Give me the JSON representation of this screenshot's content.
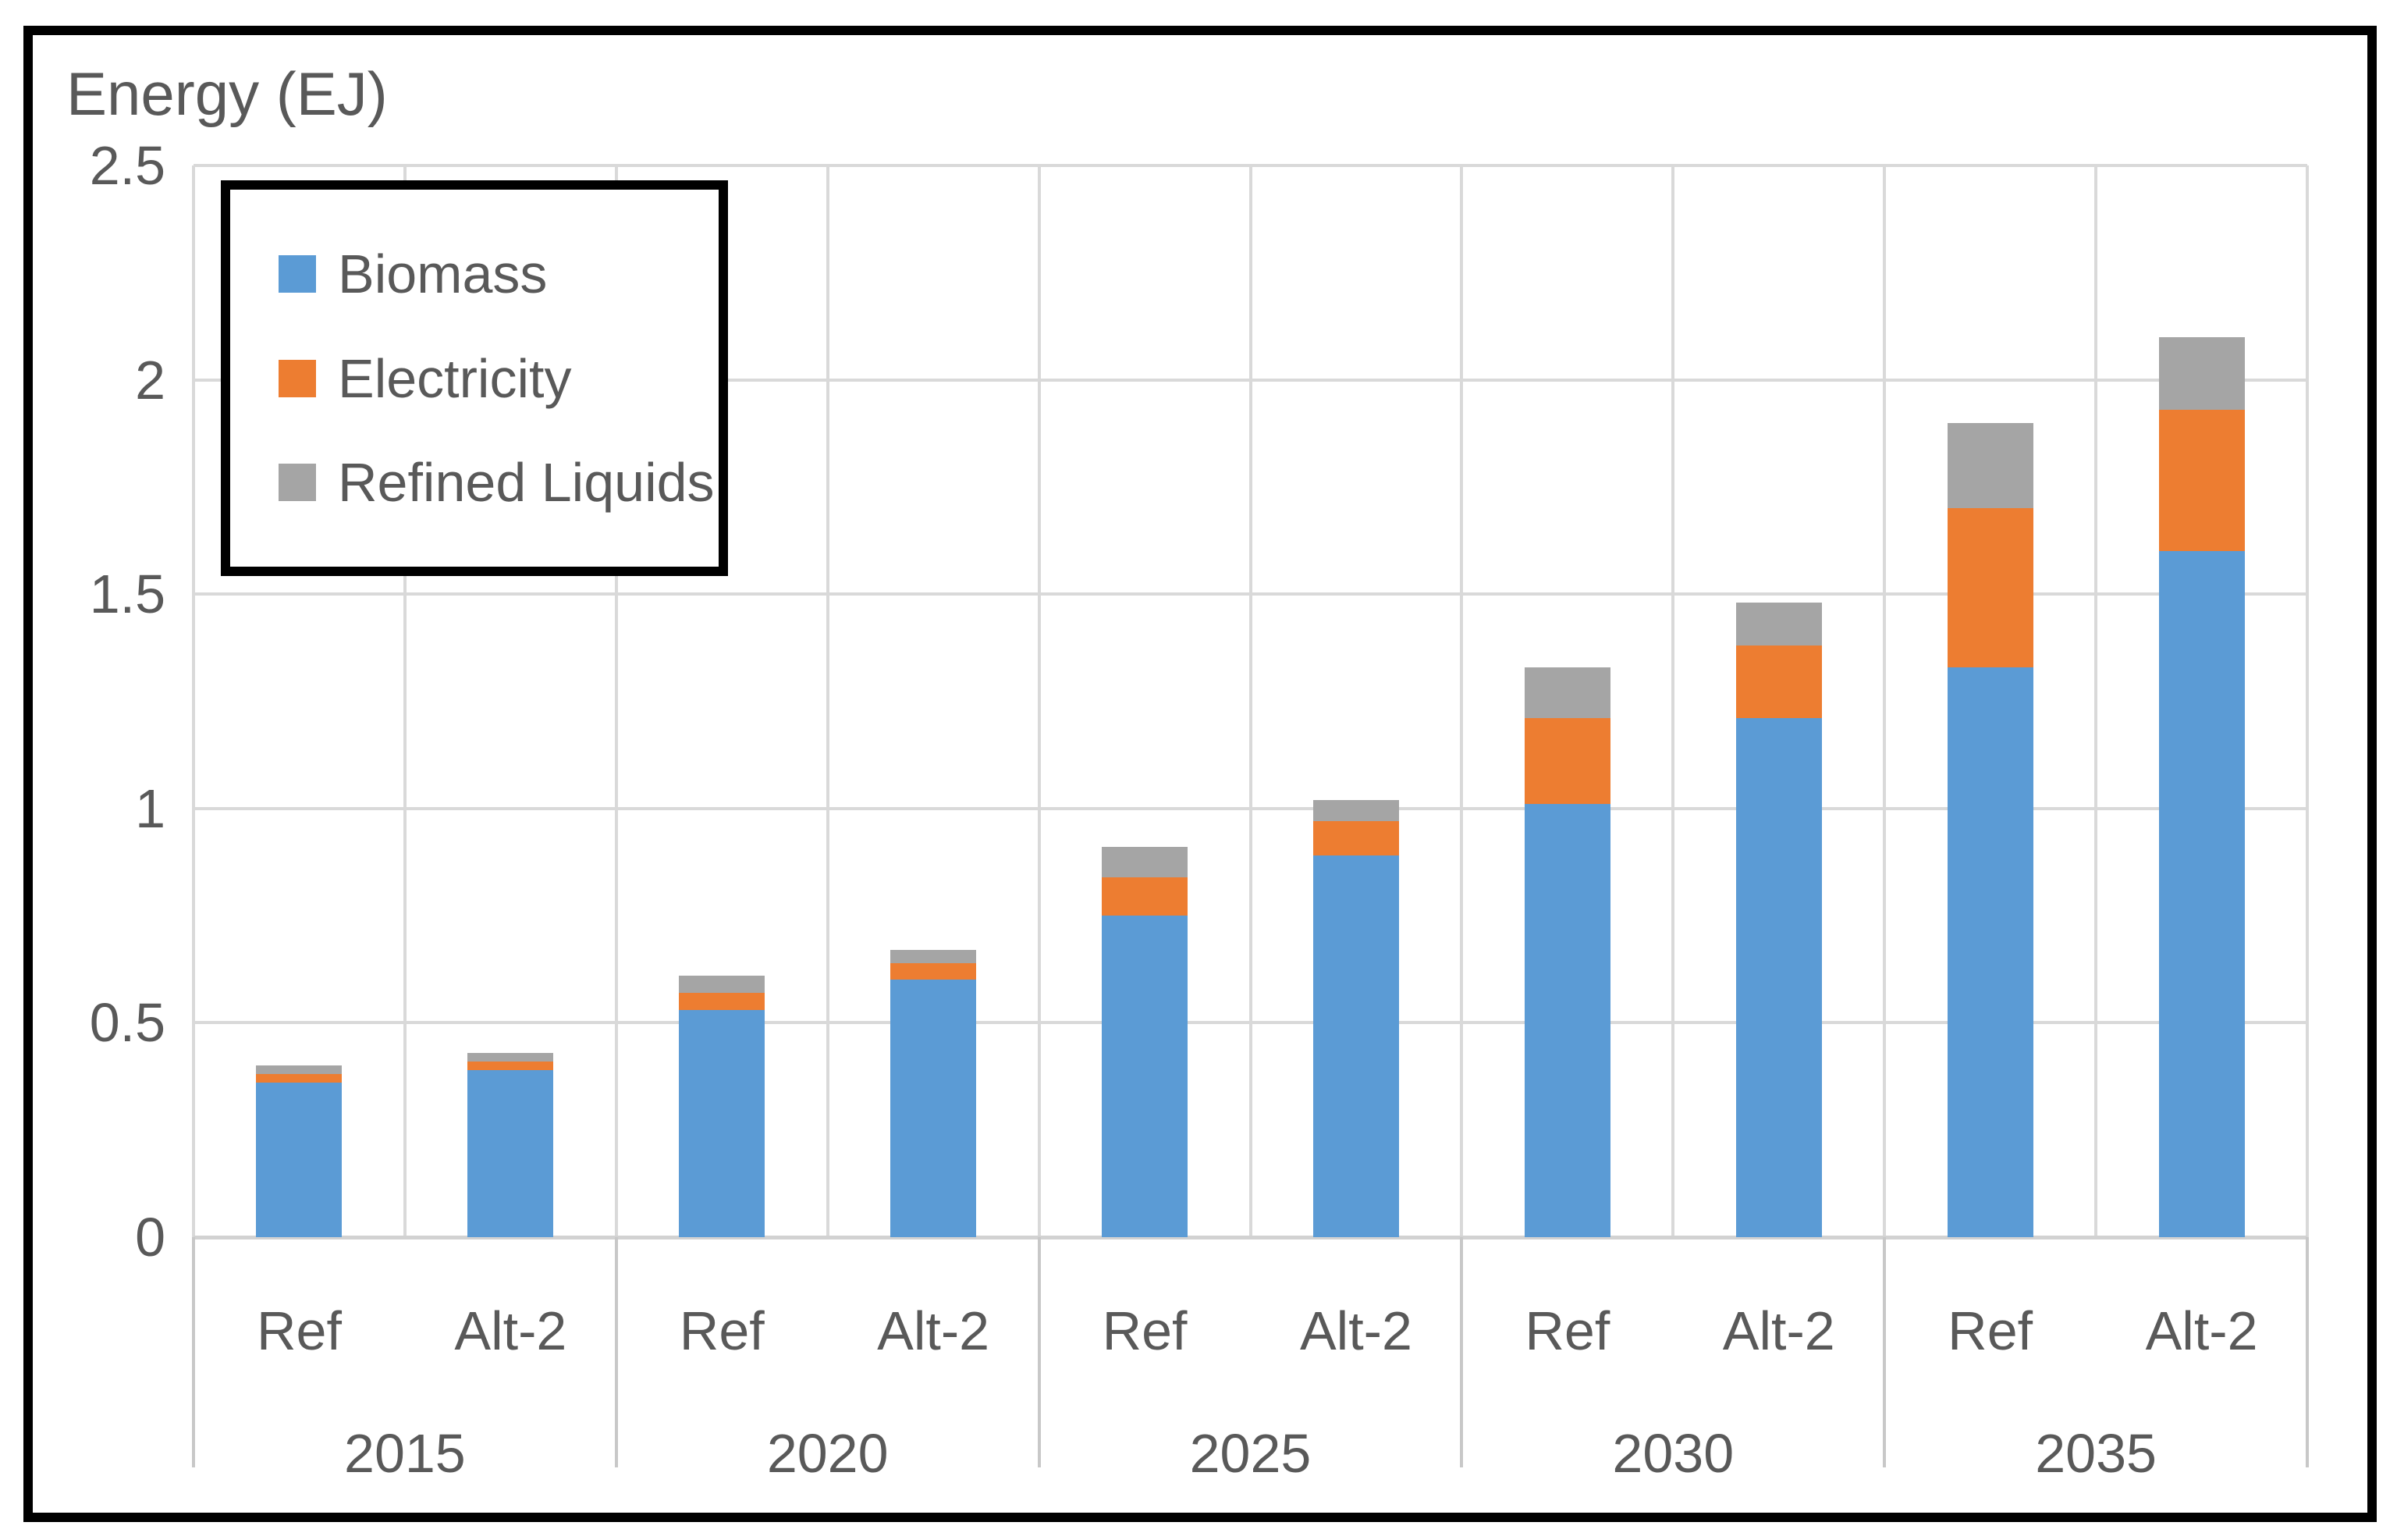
{
  "chart_data": {
    "type": "bar",
    "stacked": true,
    "title": "Energy (EJ)",
    "ylabel": "Energy (EJ)",
    "ylim": [
      0,
      2.5
    ],
    "yticks": [
      0,
      0.5,
      1,
      1.5,
      2,
      2.5
    ],
    "ytick_labels": [
      "0",
      "0.5",
      "1",
      "1.5",
      "2",
      "2.5"
    ],
    "groups": [
      "2015",
      "2020",
      "2025",
      "2030",
      "2035"
    ],
    "columns": [
      {
        "year": "2015",
        "scenario": "Ref"
      },
      {
        "year": "2015",
        "scenario": "Alt-2"
      },
      {
        "year": "2020",
        "scenario": "Ref"
      },
      {
        "year": "2020",
        "scenario": "Alt-2"
      },
      {
        "year": "2025",
        "scenario": "Ref"
      },
      {
        "year": "2025",
        "scenario": "Alt-2"
      },
      {
        "year": "2030",
        "scenario": "Ref"
      },
      {
        "year": "2030",
        "scenario": "Alt-2"
      },
      {
        "year": "2035",
        "scenario": "Ref"
      },
      {
        "year": "2035",
        "scenario": "Alt-2"
      }
    ],
    "series": [
      {
        "name": "Biomass",
        "color": "#5B9BD5",
        "values": [
          0.36,
          0.39,
          0.53,
          0.6,
          0.75,
          0.89,
          1.01,
          1.21,
          1.33,
          1.6
        ]
      },
      {
        "name": "Electricity",
        "color": "#ED7D31",
        "values": [
          0.02,
          0.02,
          0.04,
          0.04,
          0.09,
          0.08,
          0.2,
          0.17,
          0.37,
          0.33
        ]
      },
      {
        "name": "Refined Liquids",
        "color": "#A5A5A5",
        "values": [
          0.02,
          0.02,
          0.04,
          0.03,
          0.07,
          0.05,
          0.12,
          0.1,
          0.2,
          0.17
        ]
      }
    ],
    "totals": [
      0.4,
      0.43,
      0.61,
      0.67,
      0.91,
      1.02,
      1.33,
      1.48,
      1.9,
      2.1
    ],
    "legend_position": "top-left",
    "grid": true,
    "colors": {
      "gridline": "#D9D9D9",
      "axis_text": "#595959",
      "frame_border": "#000000"
    }
  }
}
